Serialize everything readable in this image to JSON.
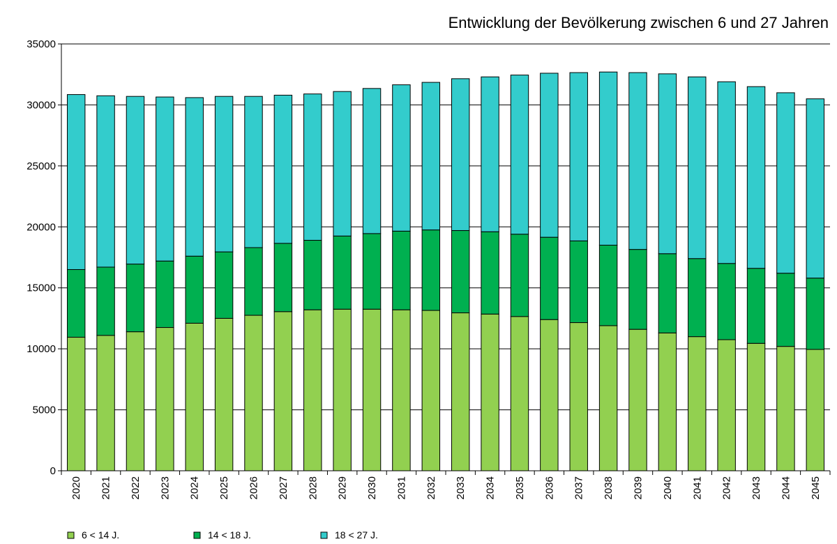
{
  "chart_data": {
    "type": "stacked_bar",
    "title": "Entwicklung der Bevölkerung zwischen 6 und 27 Jahren",
    "categories": [
      "2020",
      "2021",
      "2022",
      "2023",
      "2024",
      "2025",
      "2026",
      "2027",
      "2028",
      "2029",
      "2030",
      "2031",
      "2032",
      "2033",
      "2034",
      "2035",
      "2036",
      "2037",
      "2038",
      "2039",
      "2040",
      "2041",
      "2042",
      "2043",
      "2044",
      "2045"
    ],
    "series": [
      {
        "name": "6 < 14 J.",
        "color": "#92d050",
        "values": [
          10950,
          11100,
          11400,
          11750,
          12100,
          12500,
          12750,
          13050,
          13200,
          13250,
          13250,
          13200,
          13150,
          12950,
          12850,
          12650,
          12400,
          12150,
          11900,
          11600,
          11300,
          11000,
          10750,
          10450,
          10200,
          9950
        ]
      },
      {
        "name": "14 < 18 J.",
        "color": "#00b050",
        "values": [
          5550,
          5600,
          5550,
          5450,
          5500,
          5450,
          5550,
          5600,
          5700,
          6000,
          6200,
          6450,
          6600,
          6750,
          6750,
          6750,
          6750,
          6700,
          6600,
          6550,
          6500,
          6400,
          6250,
          6150,
          6000,
          5850
        ]
      },
      {
        "name": "18 < 27 J.",
        "color": "#33cccc",
        "values": [
          14350,
          14050,
          13750,
          13450,
          13000,
          12750,
          12400,
          12150,
          12000,
          11850,
          11900,
          12000,
          12100,
          12450,
          12700,
          13050,
          13450,
          13800,
          14200,
          14500,
          14750,
          14900,
          14900,
          14900,
          14800,
          14700
        ]
      }
    ],
    "ylim": [
      0,
      35000
    ],
    "yticks": [
      0,
      5000,
      10000,
      15000,
      20000,
      25000,
      30000,
      35000
    ],
    "grid": true,
    "legend": "bottom"
  }
}
